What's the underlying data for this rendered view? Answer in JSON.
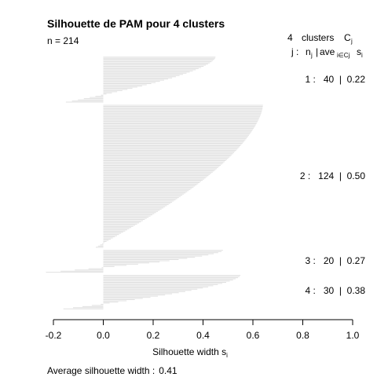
{
  "chart_data": {
    "type": "bar",
    "orientation": "horizontal",
    "title": "Silhouette de PAM pour 4 clusters",
    "subtitle": "n = 214",
    "xlabel": "Silhouette width s",
    "xlabel_subscript": "i",
    "xlim": [
      -0.2,
      1.0
    ],
    "xticks": [
      -0.2,
      0.0,
      0.2,
      0.4,
      0.6,
      0.8,
      1.0
    ],
    "xtick_labels": [
      "-0.2",
      "0.0",
      "0.2",
      "0.4",
      "0.6",
      "0.8",
      "1.0"
    ],
    "grid": false,
    "bar_color": "#e0e0e0",
    "legend_header": {
      "count": "4",
      "clusters_word": "clusters",
      "c": "C",
      "c_sub": "j",
      "j_label": "j :",
      "n": "n",
      "n_sub": "j",
      "sep": "|",
      "ave": "ave",
      "ave_sub": "i∈Cj",
      "s": "s",
      "s_sub": "i"
    },
    "clusters": [
      {
        "id": "1",
        "n": "40",
        "avg": "0.22",
        "label": "1 :   40  |  0.22",
        "max": 0.45,
        "min": -0.15
      },
      {
        "id": "2",
        "n": "124",
        "avg": "0.50",
        "label": "2 :   124  |  0.50",
        "max": 0.64,
        "min": -0.03
      },
      {
        "id": "3",
        "n": "20",
        "avg": "0.27",
        "label": "3 :   20  |  0.27",
        "max": 0.48,
        "min": -0.23
      },
      {
        "id": "4",
        "n": "30",
        "avg": "0.38",
        "label": "4 :   30  |  0.38",
        "max": 0.55,
        "min": -0.16
      }
    ],
    "average_silhouette_label": "Average silhouette width :",
    "average_silhouette_value": "0.41"
  }
}
